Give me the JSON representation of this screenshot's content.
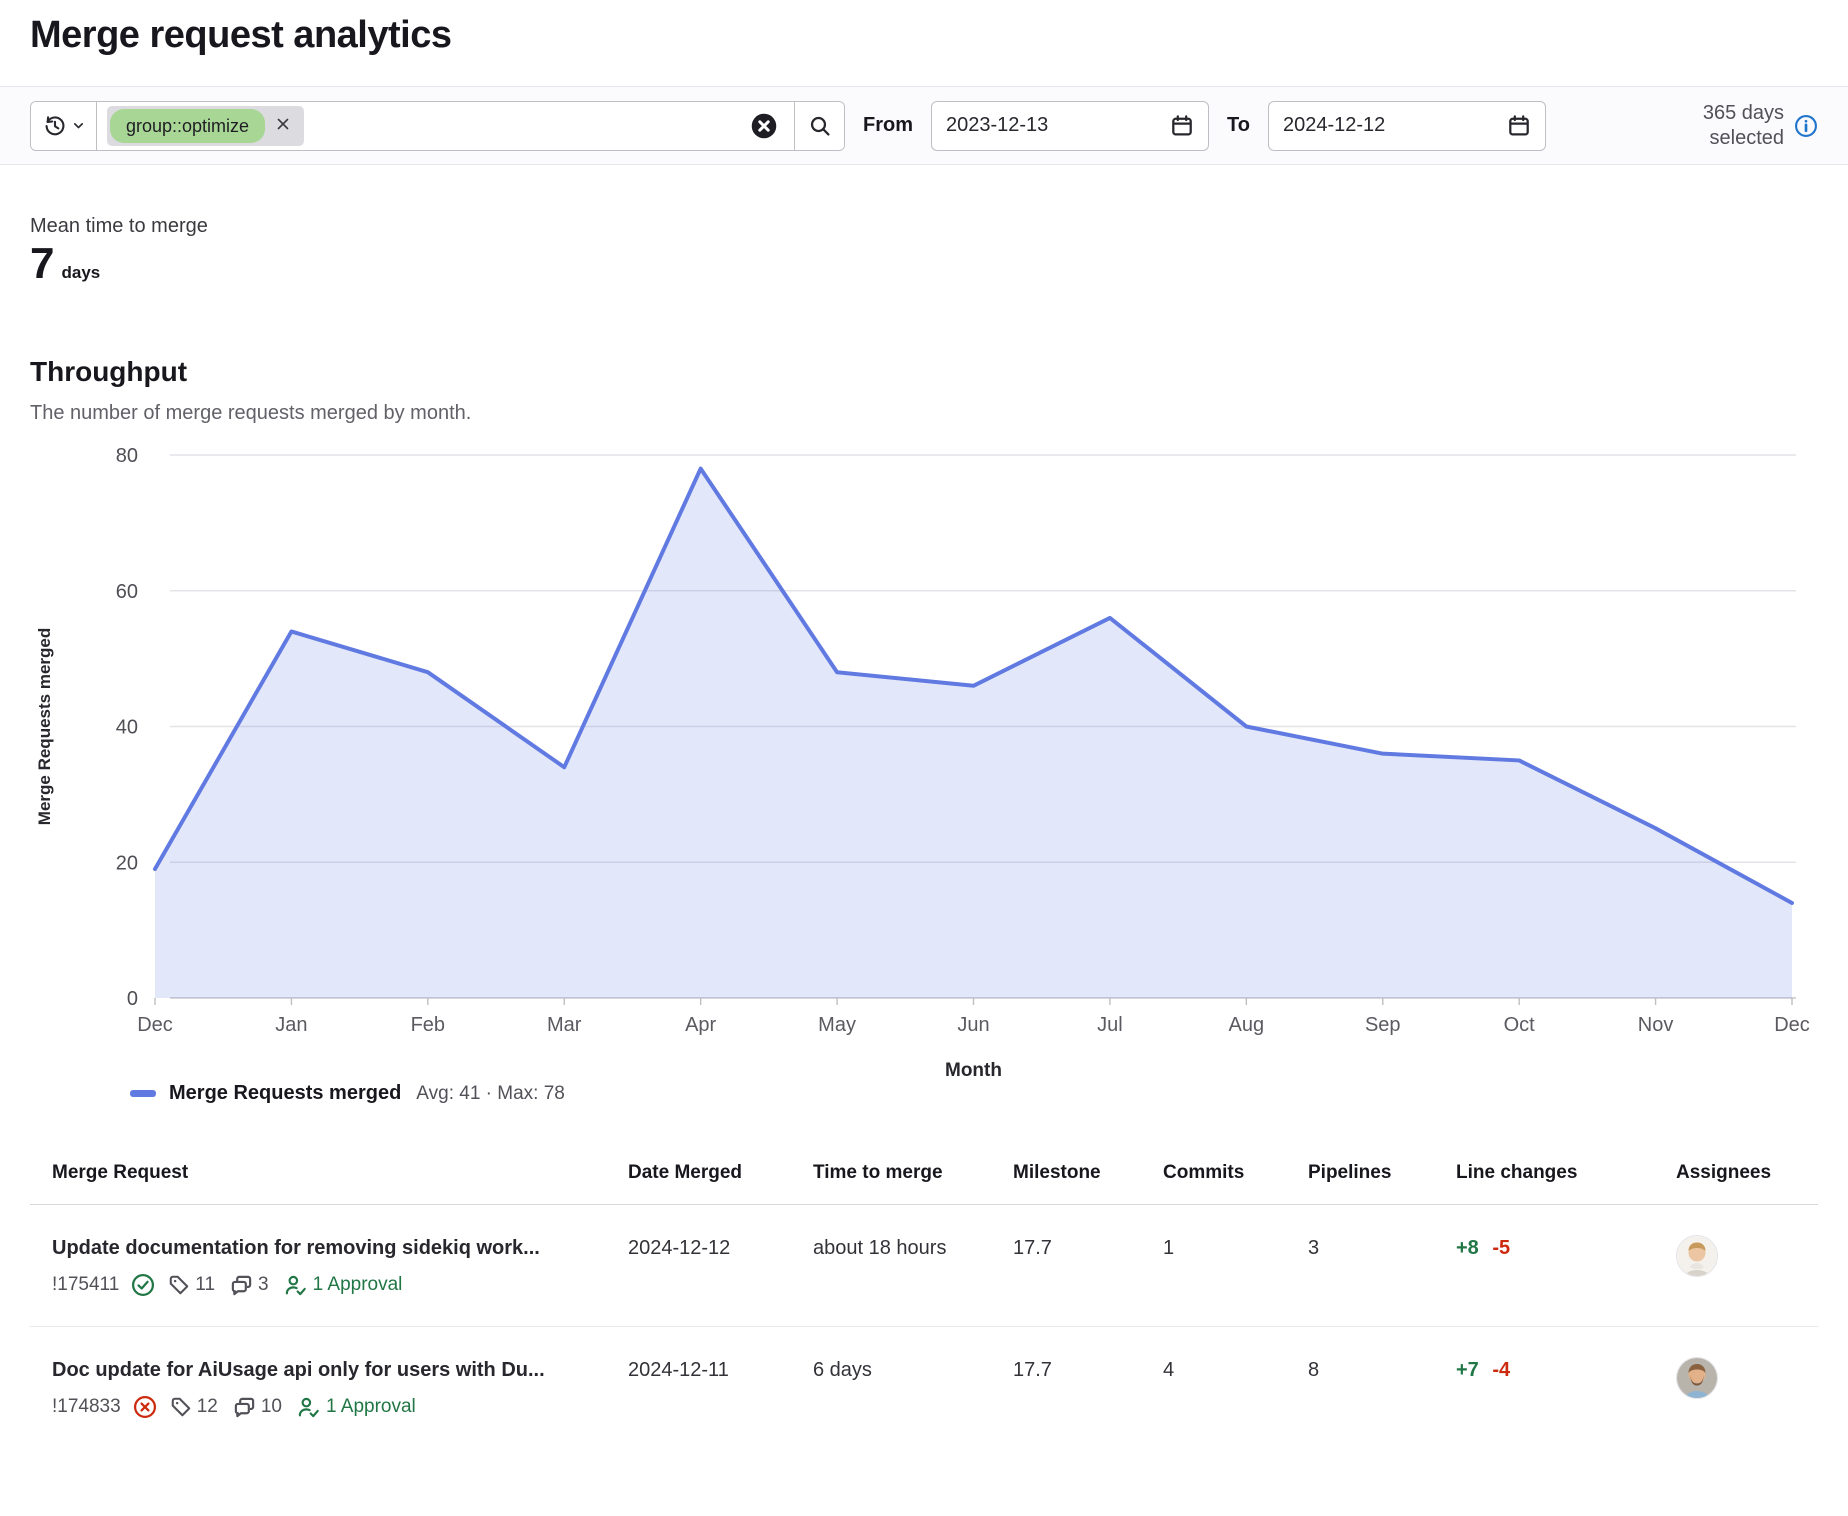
{
  "page": {
    "title": "Merge request analytics"
  },
  "filter_bar": {
    "history_icon": "history-clock-icon",
    "token": {
      "value": "group::optimize",
      "remove_icon": "close-x-icon"
    },
    "clear_icon": "clear-circle-icon",
    "search_icon": "search-magnifier-icon",
    "from_label": "From",
    "from_value": "2023-12-13",
    "to_label": "To",
    "to_value": "2024-12-12",
    "calendar_icon": "calendar-icon",
    "days_line1": "365 days",
    "days_line2": "selected",
    "info_icon": "info-circle-icon"
  },
  "mean_time": {
    "label": "Mean time to merge",
    "value": "7",
    "unit": "days"
  },
  "throughput": {
    "heading": "Throughput",
    "description": "The number of merge requests merged by month."
  },
  "chart_data": {
    "type": "area",
    "categories": [
      "Dec",
      "Jan",
      "Feb",
      "Mar",
      "Apr",
      "May",
      "Jun",
      "Jul",
      "Aug",
      "Sep",
      "Oct",
      "Nov",
      "Dec"
    ],
    "values": [
      19,
      54,
      48,
      34,
      78,
      48,
      46,
      56,
      40,
      36,
      35,
      25,
      14
    ],
    "series_name": "Merge Requests merged",
    "title": "",
    "xlabel": "Month",
    "ylabel": "Merge Requests merged",
    "ylim": [
      0,
      80
    ],
    "yticks": [
      0,
      20,
      40,
      60,
      80
    ],
    "grid": "horizontal",
    "legend_position": "bottom-left",
    "legend_label": "Merge Requests merged",
    "legend_stats": "Avg: 41 · Max: 78",
    "line_color": "#617ae2",
    "fill_color": "rgba(97,122,226,0.18)"
  },
  "table": {
    "columns": [
      "Merge Request",
      "Date Merged",
      "Time to merge",
      "Milestone",
      "Commits",
      "Pipelines",
      "Line changes",
      "Assignees"
    ],
    "rows": [
      {
        "title": "Update documentation for removing sidekiq work...",
        "mr_id": "!175411",
        "pipeline_status": "success",
        "pipeline_status_icon": "status-success-icon",
        "labels_count": "11",
        "comments_count": "3",
        "approvals": "1 Approval",
        "date_merged": "2024-12-12",
        "time_to_merge": "about 18 hours",
        "milestone": "17.7",
        "commits": "1",
        "pipelines": "3",
        "additions": "+8",
        "deletions": "-5",
        "assignee_avatar": "blond-man-avatar"
      },
      {
        "title": "Doc update for AiUsage api only for users with Du...",
        "mr_id": "!174833",
        "pipeline_status": "failed",
        "pipeline_status_icon": "status-failed-icon",
        "labels_count": "12",
        "comments_count": "10",
        "approvals": "1 Approval",
        "date_merged": "2024-12-11",
        "time_to_merge": "6 days",
        "milestone": "17.7",
        "commits": "4",
        "pipelines": "8",
        "additions": "+7",
        "deletions": "-4",
        "assignee_avatar": "bearded-man-avatar"
      }
    ]
  },
  "colors": {
    "accent_blue": "#617ae2",
    "success_green": "#217645",
    "danger_red": "#cc2a0e",
    "token_green": "#a8d695",
    "info_blue": "#1f75cb"
  }
}
